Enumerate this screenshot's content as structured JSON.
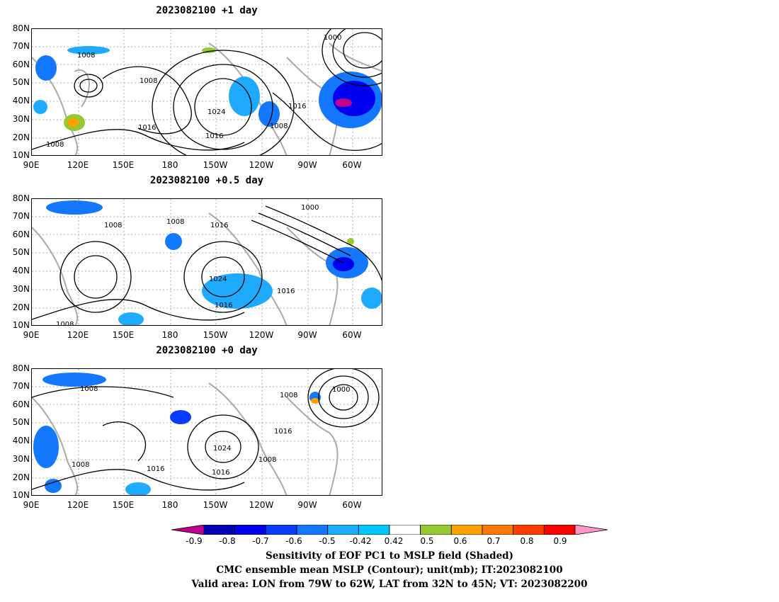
{
  "panels": [
    {
      "title": "2023082100 +1 day",
      "contour_labels": [
        "1000",
        "1008",
        "1008",
        "1008",
        "1016",
        "1016",
        "1024",
        "1008",
        "1016"
      ]
    },
    {
      "title": "2023082100 +0.5 day",
      "contour_labels": [
        "1000",
        "1008",
        "1008",
        "1016",
        "1024",
        "1016",
        "1016",
        "1008"
      ]
    },
    {
      "title": "2023082100 +0 day",
      "contour_labels": [
        "1008",
        "1008",
        "1000",
        "1016",
        "1024",
        "1008",
        "1008",
        "1016",
        "1016"
      ]
    }
  ],
  "lat_labels": [
    "80N",
    "70N",
    "60N",
    "50N",
    "40N",
    "30N",
    "20N",
    "10N"
  ],
  "lon_labels": [
    "90E",
    "120E",
    "150E",
    "180",
    "150W",
    "120W",
    "90W",
    "60W"
  ],
  "colorbar": {
    "ticks": [
      "-0.9",
      "-0.8",
      "-0.7",
      "-0.6",
      "-0.5",
      "-0.42",
      "0.42",
      "0.5",
      "0.6",
      "0.7",
      "0.8",
      "0.9"
    ],
    "colors": [
      "#c00090",
      "#0000b4",
      "#0000f0",
      "#0a3cff",
      "#1478ff",
      "#1eaaff",
      "#00c8ff",
      "#ffffff",
      "#96c832",
      "#ffa000",
      "#ff7800",
      "#ff3c00",
      "#ff0000",
      "#ff96c8"
    ]
  },
  "caption": {
    "line1": "Sensitivity of EOF PC1 to MSLP field (Shaded)",
    "line2": "CMC ensemble mean MSLP (Contour); unit(mb); IT:2023082100",
    "line3": "Valid area: LON from 79W to 62W, LAT from 32N to 45N; VT: 2023082200"
  }
}
